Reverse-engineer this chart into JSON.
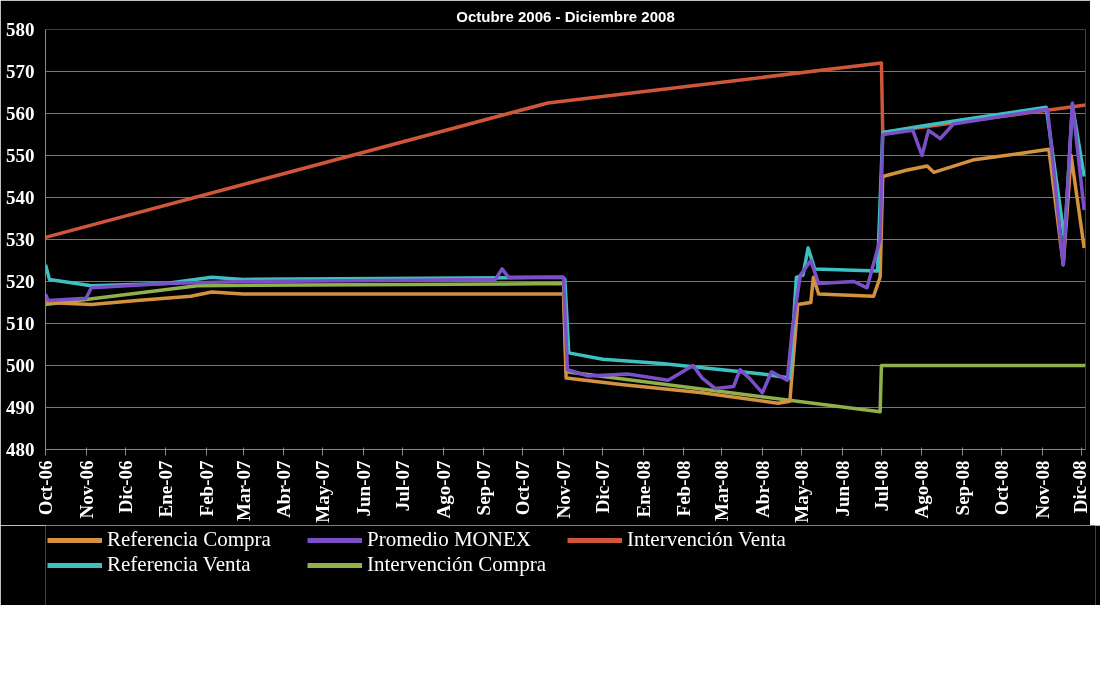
{
  "chart_data": {
    "type": "line",
    "title": "Octubre 2006 - Diciembre 2008",
    "xlim": [
      "2006-10-01",
      "2008-12-04"
    ],
    "xticks": [
      {
        "value": "2006-10-01",
        "label": "Oct-06"
      },
      {
        "value": "2006-11-01",
        "label": "Nov-06"
      },
      {
        "value": "2006-12-01",
        "label": "Dic-06"
      },
      {
        "value": "2007-01-01",
        "label": "Ene-07"
      },
      {
        "value": "2007-02-01",
        "label": "Feb-07"
      },
      {
        "value": "2007-03-01",
        "label": "Mar-07"
      },
      {
        "value": "2007-04-01",
        "label": "Abr-07"
      },
      {
        "value": "2007-05-01",
        "label": "May-07"
      },
      {
        "value": "2007-06-01",
        "label": "Jun-07"
      },
      {
        "value": "2007-07-01",
        "label": "Jul-07"
      },
      {
        "value": "2007-08-01",
        "label": "Ago-07"
      },
      {
        "value": "2007-09-01",
        "label": "Sep-07"
      },
      {
        "value": "2007-10-01",
        "label": "Oct-07"
      },
      {
        "value": "2007-11-01",
        "label": "Nov-07"
      },
      {
        "value": "2007-12-01",
        "label": "Dic-07"
      },
      {
        "value": "2008-01-01",
        "label": "Ene-08"
      },
      {
        "value": "2008-02-01",
        "label": "Feb-08"
      },
      {
        "value": "2008-03-01",
        "label": "Mar-08"
      },
      {
        "value": "2008-04-01",
        "label": "Abr-08"
      },
      {
        "value": "2008-05-01",
        "label": "May-08"
      },
      {
        "value": "2008-06-01",
        "label": "Jun-08"
      },
      {
        "value": "2008-07-01",
        "label": "Jul-08"
      },
      {
        "value": "2008-08-01",
        "label": "Ago-08"
      },
      {
        "value": "2008-09-01",
        "label": "Sep-08"
      },
      {
        "value": "2008-10-01",
        "label": "Oct-08"
      },
      {
        "value": "2008-11-01",
        "label": "Nov-08"
      },
      {
        "value": "2008-12-01",
        "label": "Dic-08"
      }
    ],
    "ylim": [
      480,
      580
    ],
    "yticks": [
      480,
      490,
      500,
      510,
      520,
      530,
      540,
      550,
      560,
      570,
      580
    ],
    "grid": "y",
    "legend": "bottom",
    "marker": "none",
    "line_style": "solid",
    "series": [
      {
        "name": "Intervención Venta",
        "color": "#d0563a",
        "x": [
          "2006-10-01",
          "2007-10-20",
          "2008-07-01",
          "2008-07-02",
          "2008-12-04"
        ],
        "values": [
          530.5,
          562.5,
          572,
          555.5,
          562
        ]
      },
      {
        "name": "Intervención Compra",
        "color": "#8fb04a",
        "x": [
          "2006-10-01",
          "2007-01-25",
          "2007-11-01",
          "2007-11-03",
          "2008-06-30",
          "2008-07-01",
          "2008-12-04"
        ],
        "values": [
          514.5,
          519,
          519.5,
          498.5,
          489,
          500,
          500
        ]
      },
      {
        "name": "Referencia Compra",
        "color": "#d4913f",
        "x": [
          "2006-10-01",
          "2006-10-03",
          "2006-11-05",
          "2006-12-10",
          "2007-01-20",
          "2007-02-05",
          "2007-03-01",
          "2007-11-01",
          "2007-11-03",
          "2007-12-15",
          "2008-02-15",
          "2008-04-13",
          "2008-04-22",
          "2008-04-28",
          "2008-05-08",
          "2008-05-10",
          "2008-05-14",
          "2008-06-25",
          "2008-06-30",
          "2008-07-02",
          "2008-07-20",
          "2008-08-05",
          "2008-08-10",
          "2008-09-10",
          "2008-10-15",
          "2008-11-06",
          "2008-11-17",
          "2008-11-23",
          "2008-12-03"
        ],
        "values": [
          516,
          515,
          514.5,
          515.5,
          516.5,
          517.5,
          517,
          517,
          497,
          495.5,
          493.5,
          491,
          491.5,
          514.5,
          515,
          521,
          517,
          516.5,
          521,
          545,
          546.5,
          547.5,
          546,
          549,
          550.5,
          551.5,
          524,
          550,
          528
        ]
      },
      {
        "name": "Referencia Venta",
        "color": "#3fc0c0",
        "x": [
          "2006-10-01",
          "2006-10-04",
          "2006-11-05",
          "2007-01-01",
          "2007-02-05",
          "2007-03-01",
          "2007-10-31",
          "2007-11-02",
          "2007-11-05",
          "2007-12-01",
          "2008-01-15",
          "2008-03-01",
          "2008-04-01",
          "2008-04-22",
          "2008-04-27",
          "2008-05-02",
          "2008-05-06",
          "2008-05-11",
          "2008-06-28",
          "2008-07-02",
          "2008-08-01",
          "2008-09-01",
          "2008-11-04",
          "2008-11-18",
          "2008-11-24",
          "2008-12-03"
        ],
        "values": [
          524,
          520.5,
          519,
          519.5,
          521,
          520.5,
          521,
          520.5,
          503,
          501.5,
          500.5,
          499,
          498,
          497,
          521,
          521.5,
          528,
          523,
          522.5,
          555.5,
          557,
          558.5,
          561.5,
          530,
          562,
          545
        ]
      },
      {
        "name": "Promedio MONEX",
        "color": "#7a4fc8",
        "x": [
          "2006-10-01",
          "2006-10-03",
          "2006-11-01",
          "2006-11-05",
          "2007-01-01",
          "2007-03-01",
          "2007-09-10",
          "2007-09-15",
          "2007-09-20",
          "2007-11-01",
          "2007-11-04",
          "2007-11-20",
          "2007-12-20",
          "2008-01-20",
          "2008-02-08",
          "2008-02-15",
          "2008-02-25",
          "2008-03-10",
          "2008-03-15",
          "2008-03-22",
          "2008-04-01",
          "2008-04-08",
          "2008-04-20",
          "2008-04-24",
          "2008-04-30",
          "2008-05-08",
          "2008-05-14",
          "2008-06-10",
          "2008-06-20",
          "2008-06-30",
          "2008-07-02",
          "2008-07-25",
          "2008-08-01",
          "2008-08-06",
          "2008-08-15",
          "2008-08-25",
          "2008-10-15",
          "2008-11-05",
          "2008-11-17",
          "2008-11-24",
          "2008-12-03"
        ],
        "values": [
          517,
          515.5,
          516,
          518.5,
          519.5,
          520,
          520.5,
          523,
          521,
          521,
          499,
          497.5,
          498,
          496.5,
          500,
          497,
          494.5,
          495,
          499,
          497,
          493.5,
          498.5,
          496.5,
          509,
          521.5,
          525,
          519.5,
          520,
          518.5,
          530,
          555,
          556,
          550,
          556,
          554,
          557.5,
          560,
          561,
          524,
          562.5,
          537
        ]
      }
    ]
  }
}
